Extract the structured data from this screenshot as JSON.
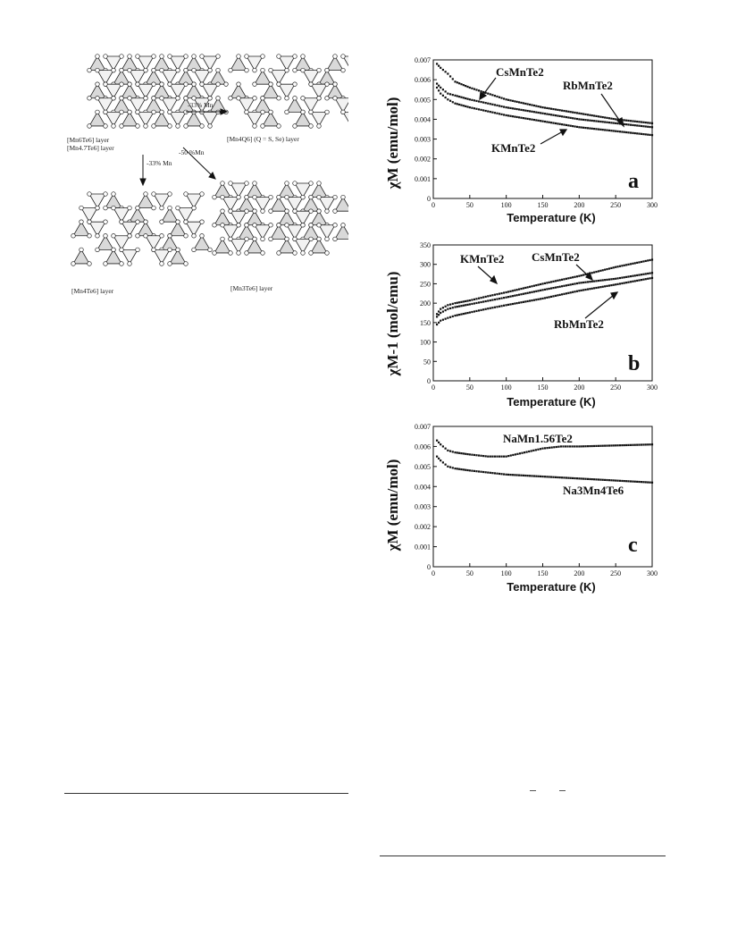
{
  "diagram": {
    "labels": {
      "mn6te6": "[Mn6Te6] layer",
      "mn47te6": "[Mn4.7Te6] layer",
      "arrow1": "-33% Mn",
      "arrow2": "-33% Mn",
      "arrow3": "-50 %Mn",
      "mn4q6": "[Mn4Q6] (Q = S, Se) layer",
      "mn4te6": "[Mn4Te6] layer",
      "mn3te6": "[Mn3Te6] layer"
    }
  },
  "chart_data": [
    {
      "id": "a",
      "type": "scatter",
      "panel_label": "a",
      "xlabel": "Temperature (K)",
      "ylabel": "χM (emu/mol)",
      "xlim": [
        0,
        300
      ],
      "ylim": [
        0,
        0.007
      ],
      "xticks": [
        "0",
        "50",
        "100",
        "150",
        "200",
        "250",
        "300"
      ],
      "yticks": [
        "0",
        "0.001",
        "0.002",
        "0.003",
        "0.004",
        "0.005",
        "0.006",
        "0.007"
      ],
      "series": [
        {
          "name": "CsMnTe2",
          "x": [
            5,
            10,
            20,
            30,
            50,
            75,
            100,
            150,
            200,
            250,
            300
          ],
          "y": [
            0.0068,
            0.0066,
            0.0063,
            0.0059,
            0.0056,
            0.0053,
            0.005,
            0.0046,
            0.0043,
            0.004,
            0.0038
          ]
        },
        {
          "name": "RbMnTe2",
          "x": [
            5,
            10,
            20,
            30,
            50,
            75,
            100,
            150,
            200,
            250,
            300
          ],
          "y": [
            0.0058,
            0.0056,
            0.0053,
            0.0052,
            0.005,
            0.0048,
            0.0046,
            0.0043,
            0.004,
            0.0038,
            0.0036
          ]
        },
        {
          "name": "KMnTe2",
          "x": [
            5,
            10,
            20,
            30,
            50,
            75,
            100,
            150,
            200,
            250,
            300
          ],
          "y": [
            0.0056,
            0.0053,
            0.005,
            0.0048,
            0.0046,
            0.0044,
            0.0042,
            0.0039,
            0.0036,
            0.0034,
            0.0032
          ]
        }
      ],
      "annotations": [
        {
          "text": "CsMnTe2",
          "bind": 0
        },
        {
          "text": "RbMnTe2",
          "bind": 1
        },
        {
          "text": "KMnTe2",
          "bind": 2
        }
      ]
    },
    {
      "id": "b",
      "type": "scatter",
      "panel_label": "b",
      "xlabel": "Temperature (K)",
      "ylabel": "χM-1 (mol/emu)",
      "xlim": [
        0,
        300
      ],
      "ylim": [
        0,
        350
      ],
      "xticks": [
        "0",
        "50",
        "100",
        "150",
        "200",
        "250",
        "300"
      ],
      "yticks": [
        "0",
        "50",
        "100",
        "150",
        "200",
        "250",
        "300",
        "350"
      ],
      "series": [
        {
          "name": "KMnTe2",
          "x": [
            5,
            10,
            20,
            30,
            50,
            75,
            100,
            150,
            200,
            250,
            300
          ],
          "y": [
            172,
            185,
            195,
            200,
            207,
            218,
            228,
            250,
            270,
            293,
            312
          ]
        },
        {
          "name": "CsMnTe2",
          "x": [
            5,
            10,
            20,
            30,
            50,
            75,
            100,
            150,
            200,
            250,
            300
          ],
          "y": [
            165,
            175,
            185,
            190,
            197,
            206,
            215,
            234,
            252,
            263,
            278
          ]
        },
        {
          "name": "RbMnTe2",
          "x": [
            5,
            10,
            20,
            30,
            50,
            75,
            100,
            150,
            200,
            250,
            300
          ],
          "y": [
            145,
            155,
            162,
            168,
            176,
            186,
            195,
            212,
            232,
            248,
            265
          ]
        }
      ],
      "annotations": [
        {
          "text": "KMnTe2"
        },
        {
          "text": "CsMnTe2"
        },
        {
          "text": "RbMnTe2"
        }
      ]
    },
    {
      "id": "c",
      "type": "scatter",
      "panel_label": "c",
      "xlabel": "Temperature (K)",
      "ylabel": "χM (emu/mol)",
      "xlim": [
        0,
        300
      ],
      "ylim": [
        0,
        0.007
      ],
      "xticks": [
        "0",
        "50",
        "100",
        "150",
        "200",
        "250",
        "300"
      ],
      "yticks": [
        "0",
        "0.001",
        "0.002",
        "0.003",
        "0.004",
        "0.005",
        "0.006",
        "0.007"
      ],
      "series": [
        {
          "name": "NaMn1.56Te2",
          "x": [
            5,
            10,
            20,
            30,
            50,
            75,
            100,
            125,
            150,
            175,
            200,
            250,
            300
          ],
          "y": [
            0.0063,
            0.0061,
            0.0058,
            0.0057,
            0.0056,
            0.0055,
            0.0055,
            0.0057,
            0.0059,
            0.006,
            0.006,
            0.00605,
            0.0061
          ]
        },
        {
          "name": "Na3Mn4Te6",
          "x": [
            5,
            10,
            20,
            30,
            50,
            75,
            100,
            150,
            200,
            250,
            300
          ],
          "y": [
            0.0055,
            0.0053,
            0.005,
            0.0049,
            0.0048,
            0.0047,
            0.0046,
            0.0045,
            0.0044,
            0.0043,
            0.0042
          ]
        }
      ],
      "annotations": [
        {
          "text": "NaMn1.56Te2"
        },
        {
          "text": "Na3Mn4Te6"
        }
      ]
    }
  ]
}
